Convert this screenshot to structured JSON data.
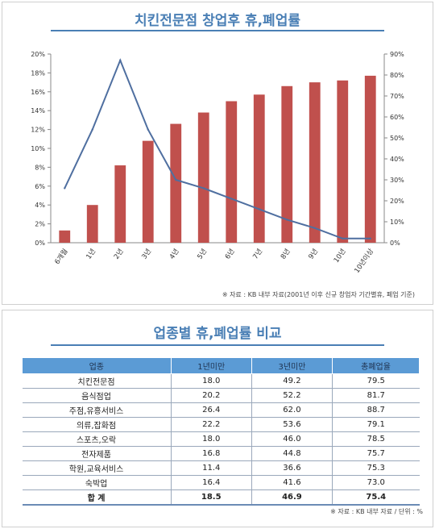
{
  "chart_panel": {
    "title": "치킨전문점 창업후 휴,폐업률",
    "note": "※ 자료 : KB 내부 자료(2001년 이후 신규 창업자 기간별휴, 폐업 기준)"
  },
  "chart_data": {
    "type": "bar",
    "title": "치킨전문점 창업후 휴,폐업률",
    "categories": [
      "6개월",
      "1년",
      "2년",
      "3년",
      "4년",
      "5년",
      "6년",
      "7년",
      "8년",
      "9년",
      "10년",
      "10년이상"
    ],
    "series": [
      {
        "type": "bar",
        "axis": "left",
        "color": "#c0504d",
        "values": [
          1.3,
          4.0,
          8.2,
          10.8,
          12.6,
          13.8,
          15.0,
          15.7,
          16.6,
          17.0,
          17.2,
          17.7
        ]
      },
      {
        "type": "line",
        "axis": "right",
        "color": "#4f6fa0",
        "values": [
          26,
          54,
          87,
          54,
          30,
          26,
          21,
          16,
          11,
          7,
          2,
          2
        ]
      }
    ],
    "left_axis": {
      "ylim": [
        0,
        20
      ],
      "ticks": [
        "0%",
        "2%",
        "4%",
        "6%",
        "8%",
        "10%",
        "12%",
        "14%",
        "16%",
        "18%",
        "20%"
      ]
    },
    "right_axis": {
      "ylim": [
        0,
        90
      ],
      "ticks": [
        "0%",
        "10%",
        "20%",
        "30%",
        "40%",
        "50%",
        "60%",
        "70%",
        "80%",
        "90%"
      ]
    },
    "grid": false,
    "legend": "none"
  },
  "table_panel": {
    "title": "업종별 휴,폐업률 비교",
    "headers": [
      "업종",
      "1년미만",
      "3년미만",
      "총폐업율"
    ],
    "rows": [
      [
        "치킨전문점",
        "18.0",
        "49.2",
        "79.5"
      ],
      [
        "음식점업",
        "20.2",
        "52.2",
        "81.7"
      ],
      [
        "주점,유흥서비스",
        "26.4",
        "62.0",
        "88.7"
      ],
      [
        "의류,잡화점",
        "22.2",
        "53.6",
        "79.1"
      ],
      [
        "스포츠,오락",
        "18.0",
        "46.0",
        "78.5"
      ],
      [
        "전자제품",
        "16.8",
        "44.8",
        "75.7"
      ],
      [
        "학원,교육서비스",
        "11.4",
        "36.6",
        "75.3"
      ],
      [
        "숙박업",
        "16.4",
        "41.6",
        "73.0"
      ]
    ],
    "total": [
      "합 계",
      "18.5",
      "46.9",
      "75.4"
    ],
    "note": "※ 자료 : KB 내부 자료 / 단위 : %"
  }
}
